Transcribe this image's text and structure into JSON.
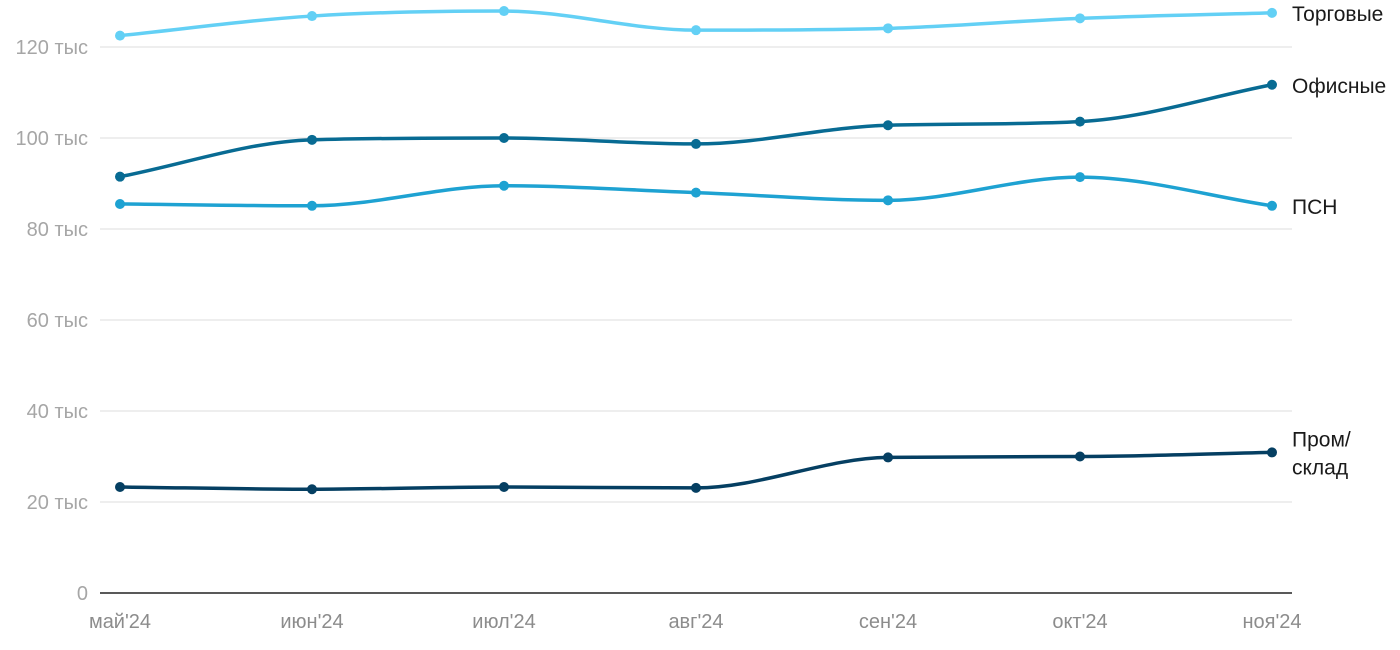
{
  "chart_data": {
    "type": "line",
    "title": "",
    "xlabel": "",
    "ylabel": "",
    "categories": [
      "май'24",
      "июн'24",
      "июл'24",
      "авг'24",
      "сен'24",
      "окт'24",
      "ноя'24"
    ],
    "ylim": [
      0,
      130000
    ],
    "yticks": [
      {
        "value": 0,
        "label": "0"
      },
      {
        "value": 20000,
        "label": "20 тыс"
      },
      {
        "value": 40000,
        "label": "40 тыс"
      },
      {
        "value": 60000,
        "label": "60 тыс"
      },
      {
        "value": 80000,
        "label": "80 тыс"
      },
      {
        "value": 100000,
        "label": "100 тыс"
      },
      {
        "value": 120000,
        "label": "120 тыс"
      }
    ],
    "grid": true,
    "legend": "inline-right",
    "series": [
      {
        "name": "Торговые",
        "label_lines": [
          "Торговые"
        ],
        "color": "#63d0f5",
        "values": [
          122500,
          126800,
          127900,
          123700,
          124100,
          126300,
          127500
        ]
      },
      {
        "name": "Офисные",
        "label_lines": [
          "Офисные"
        ],
        "color": "#086b93",
        "values": [
          91500,
          99600,
          100000,
          98700,
          102800,
          103600,
          111700
        ]
      },
      {
        "name": "ПСН",
        "label_lines": [
          "ПСН"
        ],
        "color": "#1ea2d2",
        "values": [
          85500,
          85100,
          89500,
          88000,
          86300,
          91400,
          85100
        ]
      },
      {
        "name": "Пром/склад",
        "label_lines": [
          "Пром/",
          "склад"
        ],
        "color": "#053f62",
        "values": [
          23300,
          22800,
          23300,
          23100,
          29800,
          30000,
          30900
        ]
      }
    ]
  }
}
